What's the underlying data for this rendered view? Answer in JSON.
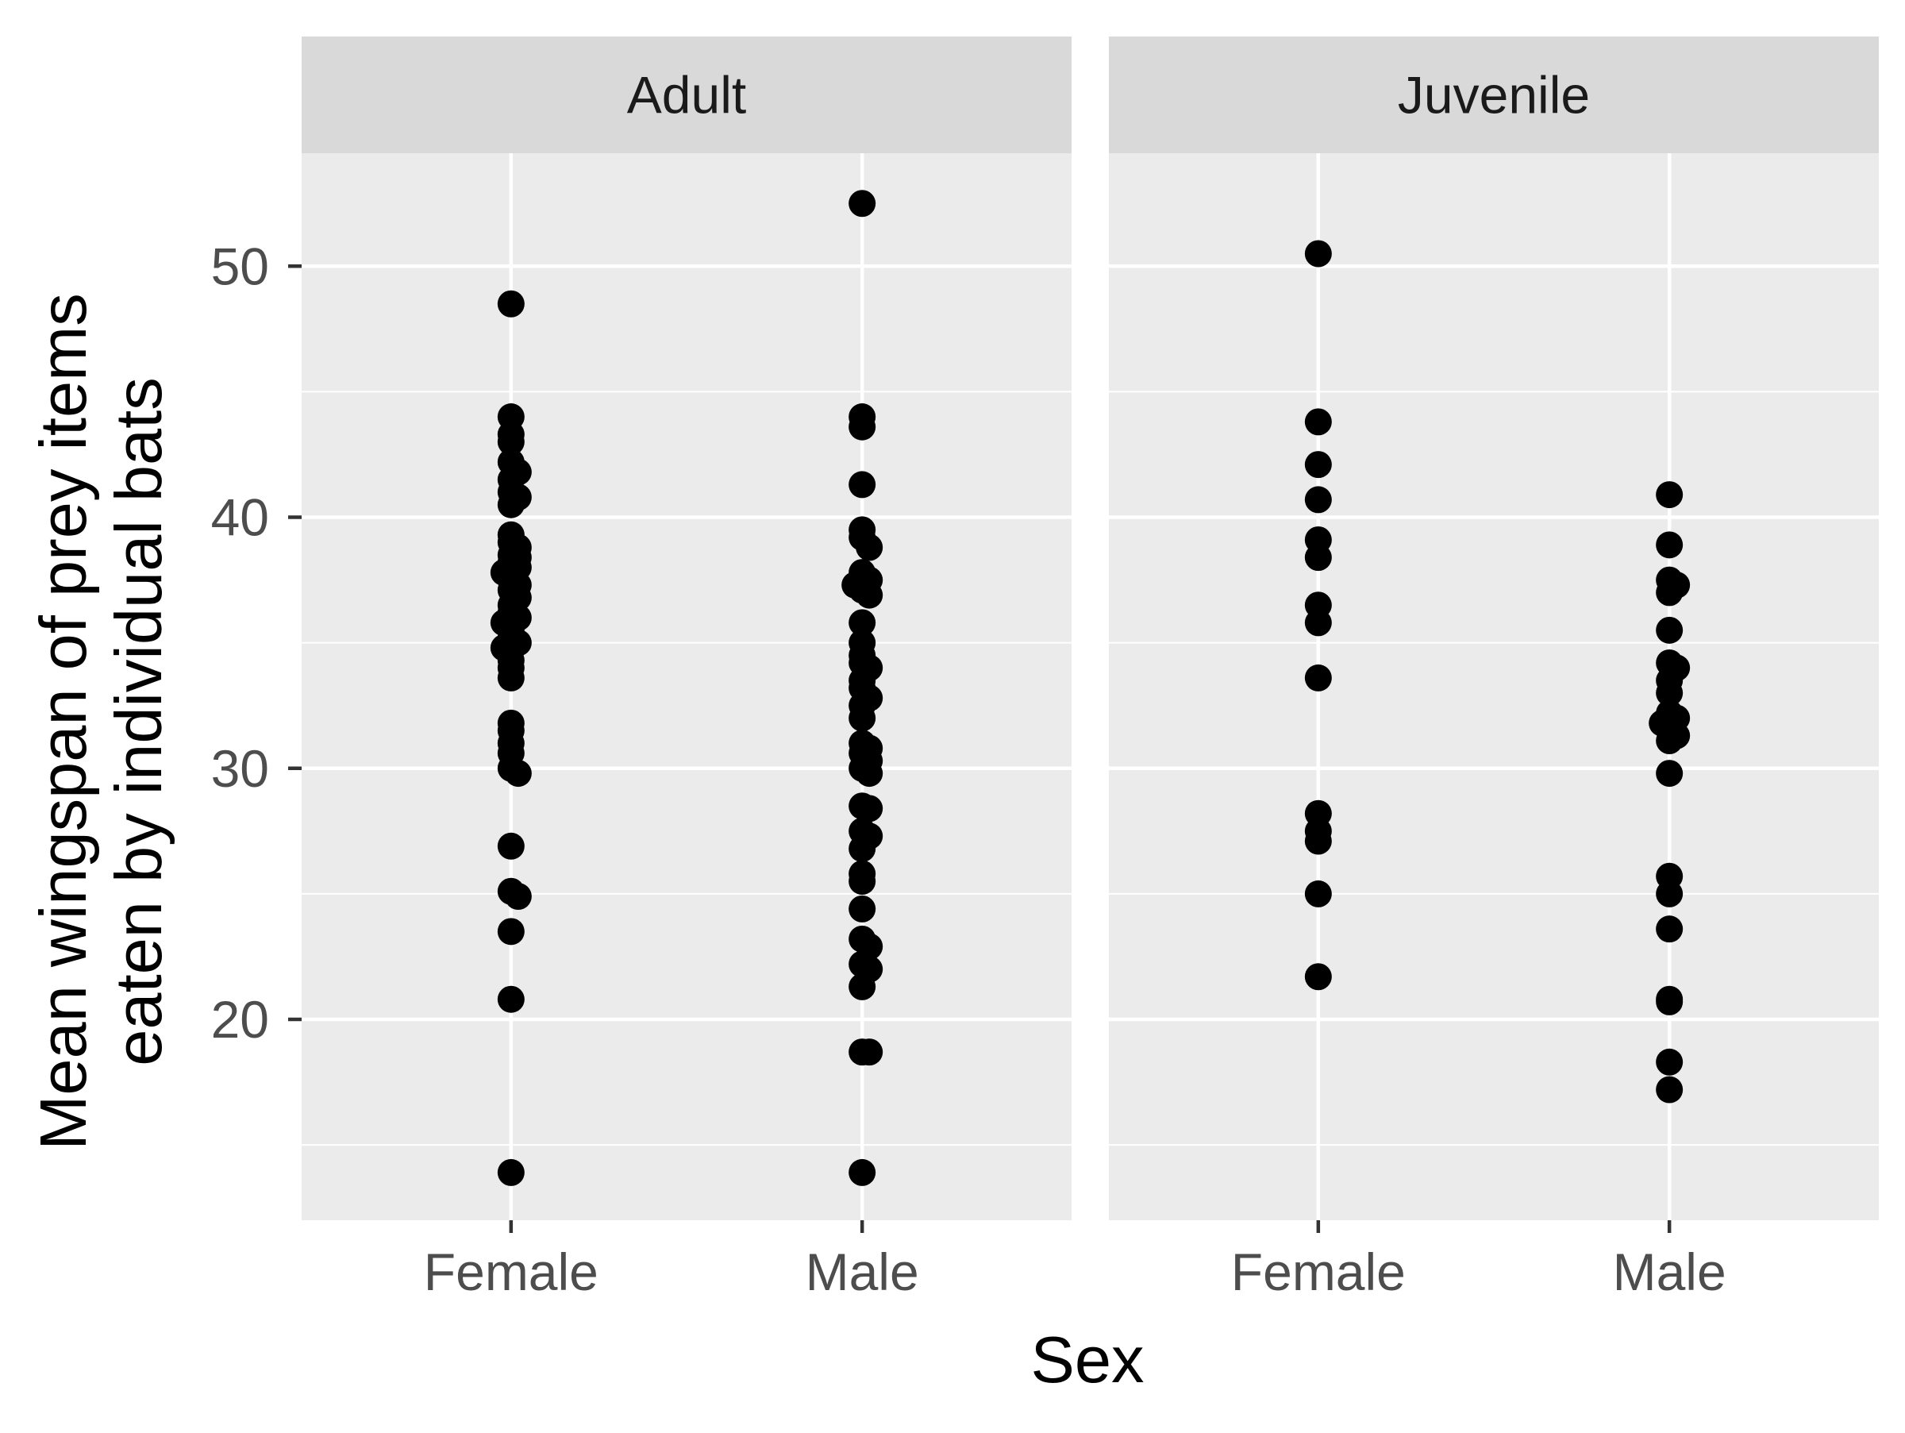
{
  "chart_data": {
    "type": "scatter",
    "xlabel": "Sex",
    "ylabel_lines": [
      "Mean wingspan of prey items",
      "eaten by individual bats"
    ],
    "categories": [
      "Female",
      "Male"
    ],
    "yticks": [
      20,
      30,
      40,
      50
    ],
    "ylim": [
      12,
      54.5
    ],
    "grid": true,
    "legend": "none",
    "point_color": "#000000",
    "panel_background": "#ebebeb",
    "strip_background": "#d9d9d9",
    "grid_color": "#ffffff",
    "facets": [
      {
        "label": "Adult",
        "series": [
          {
            "category": "Female",
            "values": [
              48.5,
              44.0,
              43.3,
              43.0,
              42.2,
              41.8,
              41.5,
              41.0,
              40.8,
              40.5,
              39.3,
              39.0,
              38.8,
              38.5,
              38.4,
              38.2,
              38.0,
              37.8,
              37.5,
              37.3,
              37.1,
              36.8,
              36.5,
              36.2,
              36.0,
              35.8,
              35.5,
              35.2,
              35.0,
              34.8,
              34.3,
              34.0,
              33.6,
              31.8,
              31.5,
              31.0,
              30.6,
              30.0,
              29.8,
              26.9,
              25.1,
              24.9,
              23.5,
              20.8,
              13.9
            ]
          },
          {
            "category": "Male",
            "values": [
              52.5,
              44.0,
              43.6,
              41.3,
              39.5,
              39.2,
              38.8,
              37.8,
              37.6,
              37.5,
              37.3,
              37.1,
              36.9,
              35.8,
              35.0,
              34.5,
              34.2,
              34.0,
              33.5,
              33.2,
              32.8,
              32.5,
              32.0,
              31.0,
              30.8,
              30.6,
              30.3,
              30.0,
              29.8,
              28.5,
              28.4,
              27.5,
              27.3,
              26.8,
              25.8,
              25.5,
              24.4,
              23.2,
              22.9,
              22.2,
              22.0,
              21.3,
              18.7,
              18.7,
              13.9
            ]
          }
        ]
      },
      {
        "label": "Juvenile",
        "series": [
          {
            "category": "Female",
            "values": [
              50.5,
              43.8,
              42.1,
              40.7,
              39.1,
              38.4,
              36.5,
              35.8,
              33.6,
              28.2,
              27.5,
              27.1,
              25.0,
              21.7
            ]
          },
          {
            "category": "Male",
            "values": [
              40.9,
              38.9,
              37.5,
              37.3,
              37.0,
              35.5,
              34.2,
              34.0,
              33.5,
              33.0,
              32.2,
              32.0,
              31.8,
              31.5,
              31.3,
              31.1,
              29.8,
              25.7,
              25.0,
              23.6,
              20.8,
              20.7,
              18.3,
              17.2
            ]
          }
        ]
      }
    ]
  }
}
